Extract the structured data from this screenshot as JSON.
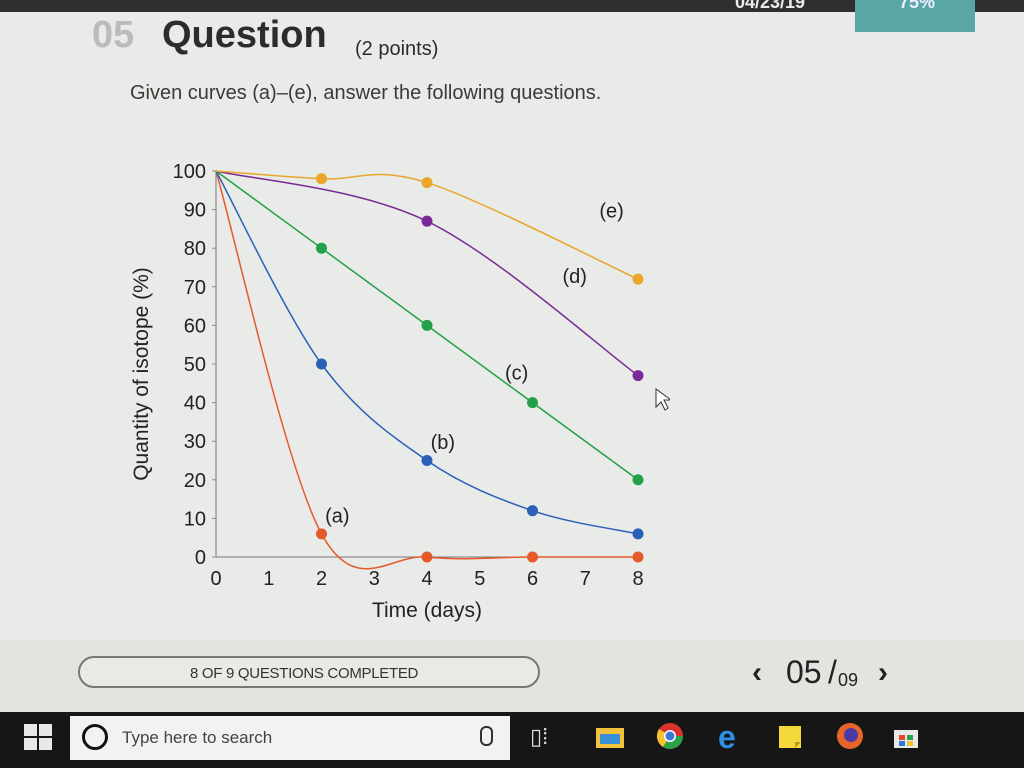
{
  "header": {
    "date_fragment": "04/23/19",
    "score_fragment": "75%"
  },
  "question": {
    "number": "05",
    "title": "Question",
    "points": "(2 points)",
    "instruction": "Given curves (a)–(e), answer the following questions."
  },
  "chart_data": {
    "type": "line",
    "xlabel": "Time (days)",
    "ylabel": "Quantity of isotope (%)",
    "xlim": [
      0,
      8
    ],
    "ylim": [
      0,
      100
    ],
    "xticks": [
      "0",
      "1",
      "2",
      "3",
      "4",
      "5",
      "6",
      "7",
      "8"
    ],
    "yticks": [
      "0",
      "10",
      "20",
      "30",
      "40",
      "50",
      "60",
      "70",
      "80",
      "90",
      "100"
    ],
    "grid": false,
    "series": [
      {
        "name": "(a)",
        "color": "#e45a2a",
        "points": [
          [
            0,
            100
          ],
          [
            2,
            6
          ],
          [
            4,
            0
          ],
          [
            6,
            0
          ],
          [
            8,
            0
          ]
        ]
      },
      {
        "name": "(b)",
        "color": "#2a60b8",
        "points": [
          [
            0,
            100
          ],
          [
            2,
            50
          ],
          [
            4,
            25
          ],
          [
            6,
            12
          ],
          [
            8,
            6
          ]
        ]
      },
      {
        "name": "(c)",
        "color": "#22a04a",
        "points": [
          [
            0,
            100
          ],
          [
            2,
            80
          ],
          [
            4,
            60
          ],
          [
            6,
            40
          ],
          [
            8,
            20
          ]
        ]
      },
      {
        "name": "(d)",
        "color": "#7a2a98",
        "points": [
          [
            0,
            100
          ],
          [
            4,
            87
          ],
          [
            8,
            47
          ]
        ]
      },
      {
        "name": "(e)",
        "color": "#eaa52a",
        "points": [
          [
            0,
            100
          ],
          [
            2,
            98
          ],
          [
            4,
            97
          ],
          [
            8,
            72
          ]
        ]
      }
    ]
  },
  "progress": {
    "label": "8 OF 9 QUESTIONS COMPLETED"
  },
  "pager": {
    "prev": "‹",
    "current": "05",
    "separator": "/",
    "total": "09",
    "next": "›"
  },
  "taskbar": {
    "search_placeholder": "Type here to search"
  },
  "icons": {
    "start": "windows-start-icon",
    "search": "cortana-circle-icon",
    "mic": "microphone-icon",
    "taskview": "task-view-icon",
    "explorer": "file-explorer-icon",
    "chrome": "chrome-icon",
    "edge": "edge-icon",
    "notes": "sticky-notes-icon",
    "firefox": "firefox-icon",
    "store": "store-icon"
  }
}
